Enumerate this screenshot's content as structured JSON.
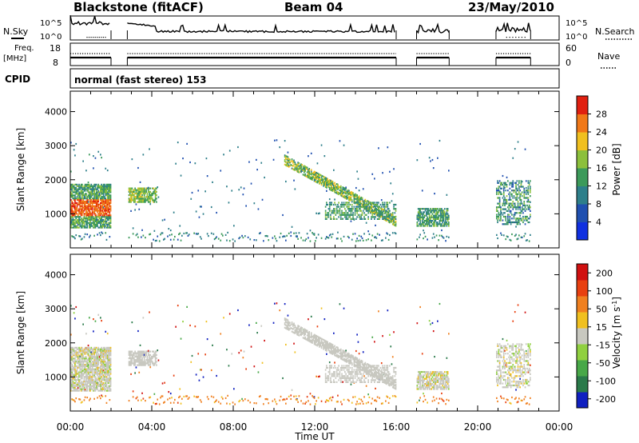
{
  "header": {
    "station": "Blackstone (fitACF)",
    "beam": "Beam 04",
    "date": "23/May/2010",
    "cpid_label": "CPID",
    "cpid_value": "normal (fast stereo) 153"
  },
  "aux_panels": {
    "nsky_label": "N.Sky",
    "nsky_ticks": [
      "10^5",
      "10^0"
    ],
    "nsearch_label": "N.Search",
    "nsearch_ticks": [
      "10^5",
      "10^0"
    ],
    "freq_label": "Freq.",
    "freq_unit": "[MHz]",
    "freq_ticks": [
      "18",
      "8"
    ],
    "nave_label": "Nave",
    "nave_ticks": [
      "60",
      "0"
    ]
  },
  "chart_data": [
    {
      "type": "heatmap",
      "name": "power",
      "xlabel": "",
      "ylabel": "Slant Range [km]",
      "xlim": [
        0,
        24
      ],
      "ylim": [
        0,
        4600
      ],
      "yticks": [
        1000,
        2000,
        3000,
        4000
      ],
      "colorbar": {
        "label": "Power [dB]",
        "ticks": [
          "4",
          "8",
          "12",
          "16",
          "20",
          "24",
          "28"
        ],
        "colors": [
          "#1030e0",
          "#2050b0",
          "#2e7f8a",
          "#3c9a5a",
          "#8cc03c",
          "#f0c020",
          "#f07818",
          "#e02010"
        ]
      },
      "data_gaps_hours": [
        [
          2.0,
          2.8
        ],
        [
          16.0,
          17.0
        ],
        [
          18.6,
          20.9
        ],
        [
          22.6,
          24.0
        ]
      ]
    },
    {
      "type": "heatmap",
      "name": "velocity",
      "xlabel": "Time UT",
      "ylabel": "Slant Range [km]",
      "xlim": [
        0,
        24
      ],
      "ylim": [
        0,
        4600
      ],
      "yticks": [
        1000,
        2000,
        3000,
        4000
      ],
      "xticks": [
        "00:00",
        "04:00",
        "08:00",
        "12:00",
        "16:00",
        "20:00",
        "00:00"
      ],
      "colorbar": {
        "label": "Velocity [m s",
        "label_sup": "-1",
        "label_end": "]",
        "ticks": [
          "200",
          "100",
          "50",
          "15",
          "-15",
          "-50",
          "-100",
          "-200"
        ],
        "colors": [
          "#1020c0",
          "#2a7a4a",
          "#48a848",
          "#90d040",
          "#c8c8c0",
          "#f0c020",
          "#f08020",
          "#e84010",
          "#d01010"
        ]
      },
      "data_gaps_hours": [
        [
          2.0,
          2.8
        ],
        [
          16.0,
          17.0
        ],
        [
          18.6,
          20.9
        ],
        [
          22.6,
          24.0
        ]
      ]
    }
  ]
}
